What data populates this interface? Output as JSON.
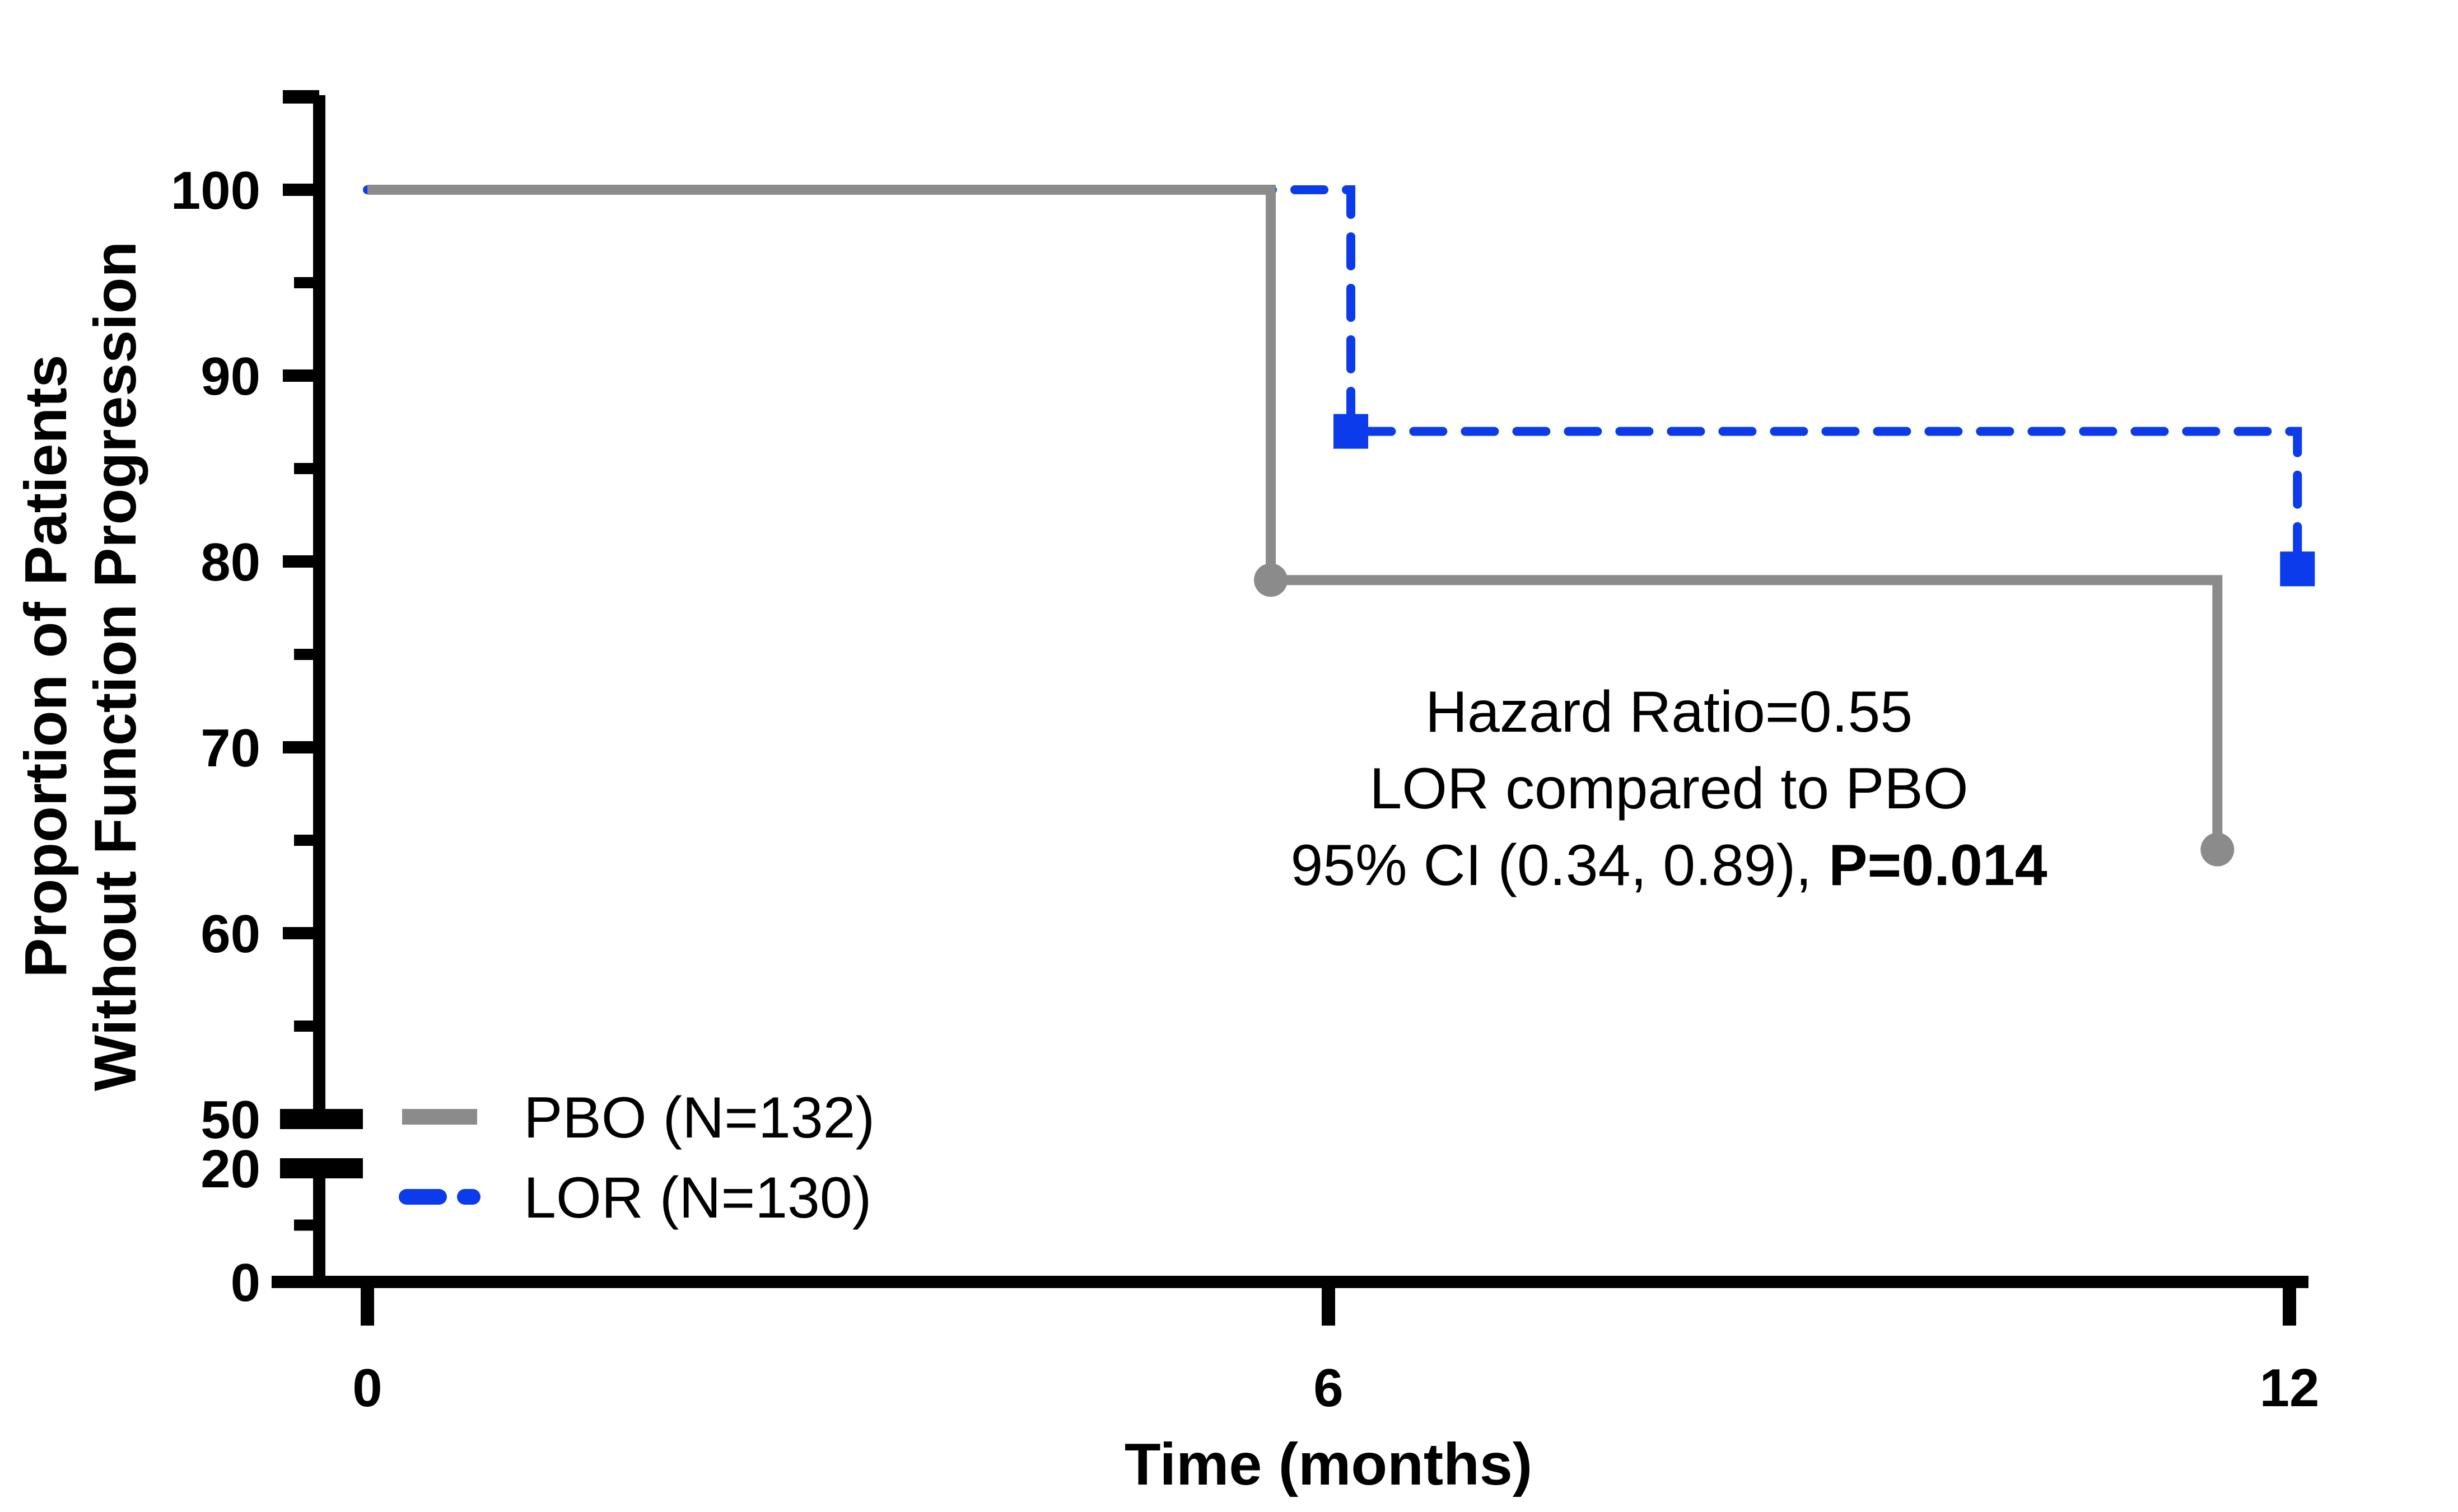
{
  "chart_data": {
    "type": "line",
    "subtype": "kaplan-meier-step",
    "title": "",
    "xlabel": "Time (months)",
    "ylabel_lines": [
      "Proportion of Patients",
      "Without Function Progression"
    ],
    "axes": {
      "x_ticks": [
        0,
        6,
        12
      ],
      "x_range": [
        0,
        12.1
      ],
      "y_axis_break": {
        "between_values": [
          20,
          50
        ]
      },
      "y_upper_major_ticks": [
        100,
        90,
        80,
        70,
        60,
        50
      ],
      "y_upper_minor_ticks": [
        105,
        95,
        85,
        75,
        65,
        55
      ],
      "y_lower_major_ticks": [
        20,
        0
      ],
      "y_lower_minor_ticks": [
        10
      ],
      "grid": false
    },
    "series": [
      {
        "name": "LOR (N=130)",
        "color": "#0B3BEB",
        "line_style": "dashed",
        "marker": "square",
        "steps": [
          {
            "x": 0,
            "y": 100
          },
          {
            "x": 6.14,
            "y": 100
          },
          {
            "x": 6.14,
            "y": 87
          },
          {
            "x": 12.05,
            "y": 87
          },
          {
            "x": 12.05,
            "y": 79.6
          }
        ],
        "markers": [
          {
            "x": 6.14,
            "y": 87
          },
          {
            "x": 12.05,
            "y": 79.6
          }
        ]
      },
      {
        "name": "PBO (N=132)",
        "color": "#8B8B8B",
        "line_style": "solid",
        "marker": "circle",
        "steps": [
          {
            "x": 0,
            "y": 100
          },
          {
            "x": 5.64,
            "y": 100
          },
          {
            "x": 5.64,
            "y": 79
          },
          {
            "x": 11.55,
            "y": 79
          },
          {
            "x": 11.55,
            "y": 64.5
          }
        ],
        "markers": [
          {
            "x": 5.64,
            "y": 79
          },
          {
            "x": 11.55,
            "y": 64.5
          }
        ]
      }
    ],
    "legend": {
      "position": "bottom-left-inside",
      "entries": [
        {
          "label": "PBO (N=132)",
          "color": "#8B8B8B",
          "style": "solid"
        },
        {
          "label": "LOR (N=130)",
          "color": "#0B3BEB",
          "style": "dashed"
        }
      ]
    },
    "annotation": {
      "line1": "Hazard Ratio=0.55",
      "line2": "LOR compared to PBO",
      "line3_normal": "95% CI (0.34, 0.89),",
      "line3_bold": "P=0.014"
    },
    "colors": {
      "axis": "#000000",
      "pbo_gray": "#8B8B8B",
      "lor_blue": "#0B3BEB",
      "background": "#FFFFFF"
    }
  }
}
